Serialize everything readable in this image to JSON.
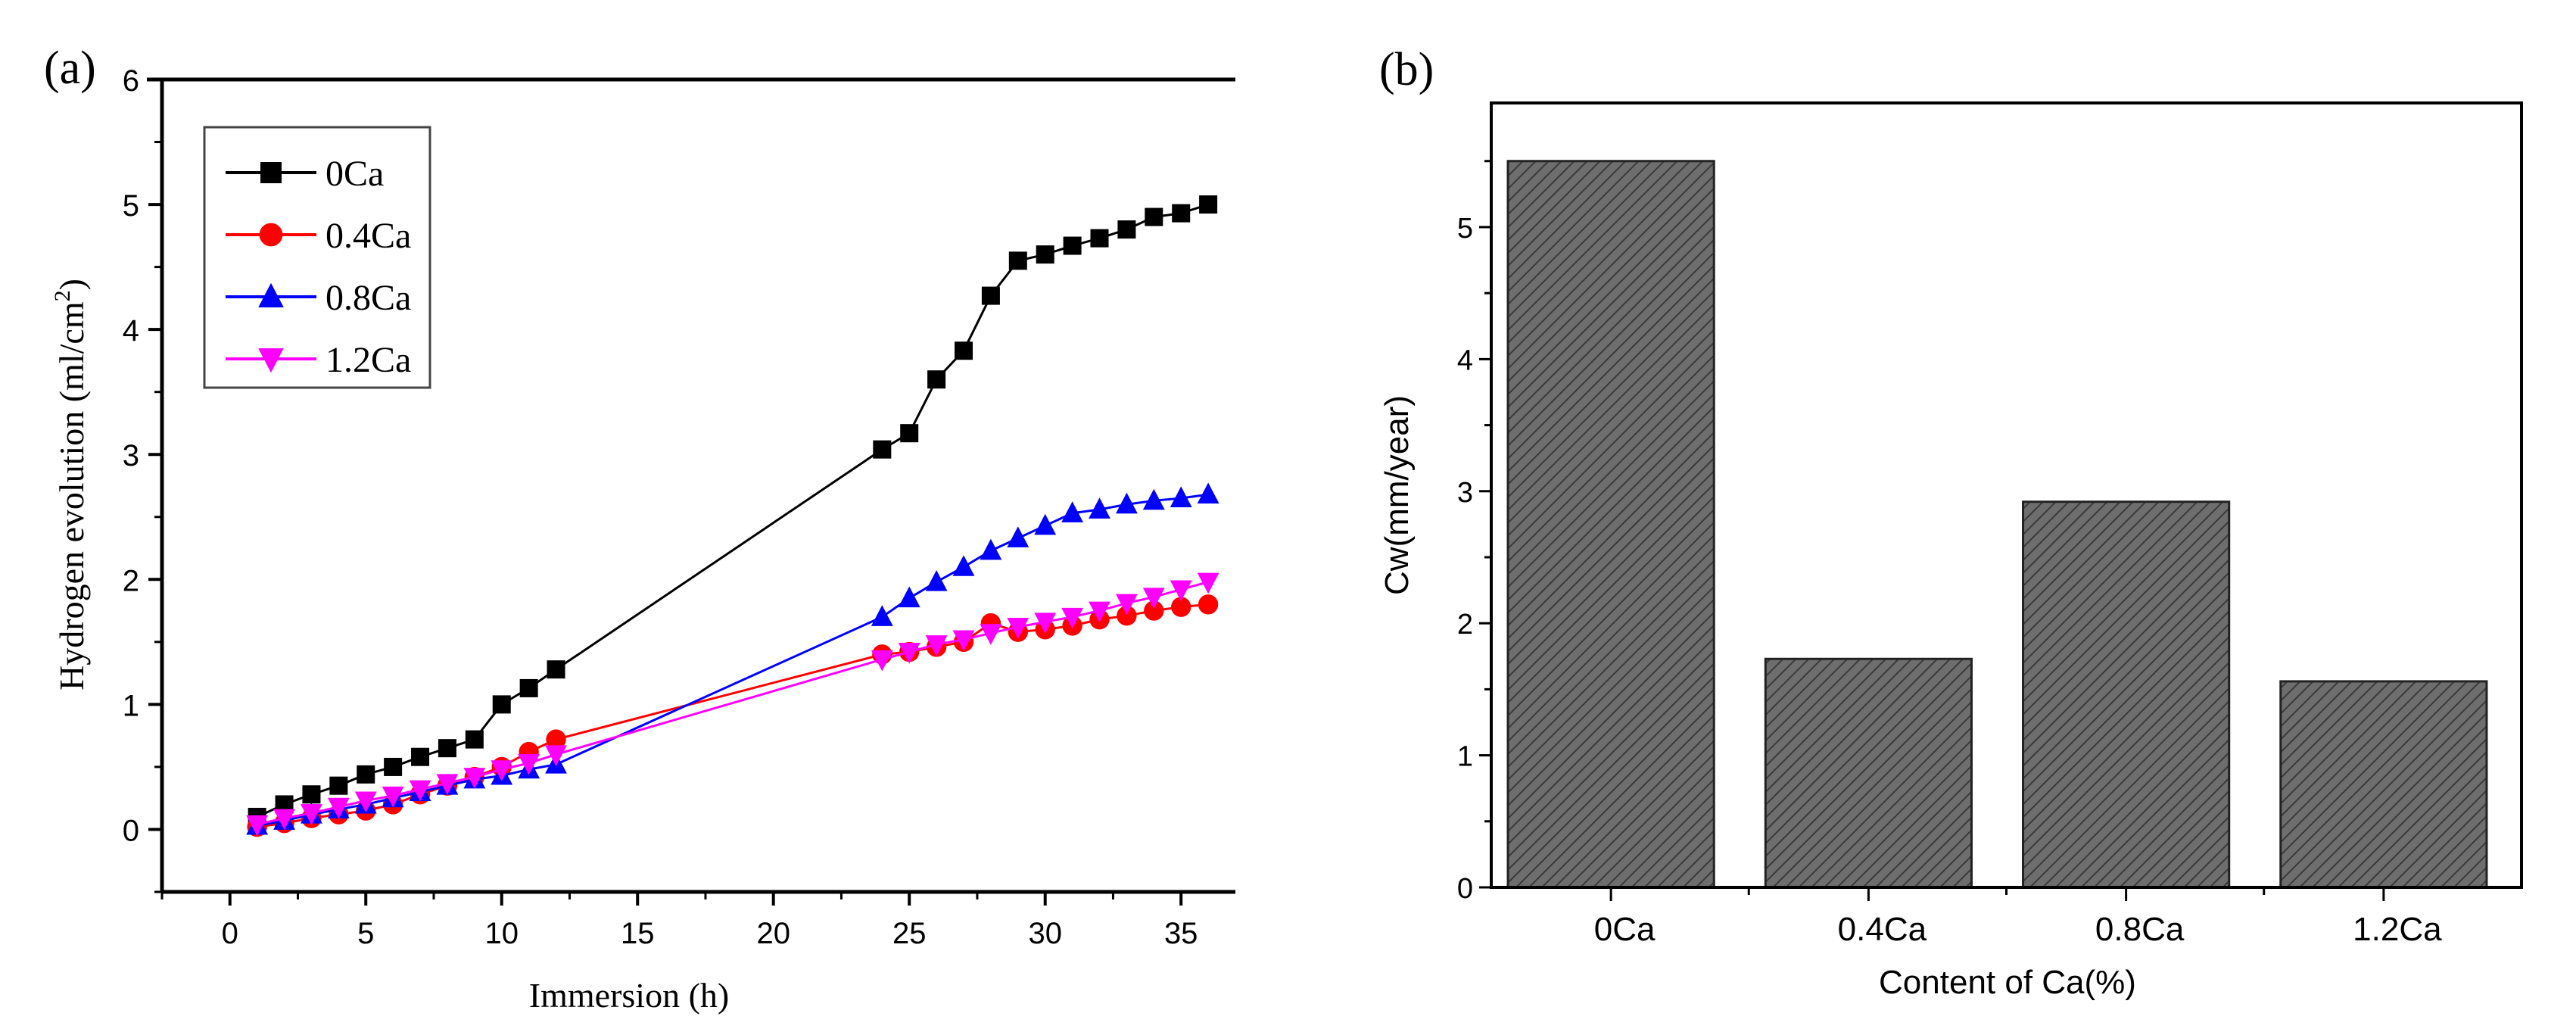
{
  "chart_data": [
    {
      "type": "line",
      "panel_label": "(a)",
      "title": "",
      "xlabel": "Immersion (h)",
      "ylabel": "Hydrogen evolution (ml/cm",
      "ylabel_sup": "2",
      "ylabel_close": ")",
      "xlim": [
        -2.5,
        37
      ],
      "ylim": [
        -0.5,
        6
      ],
      "xticks": [
        0,
        5,
        10,
        15,
        20,
        25,
        30,
        35
      ],
      "yticks": [
        0,
        1,
        2,
        3,
        4,
        5,
        6
      ],
      "legend_position": "top-left",
      "x": [
        1,
        2,
        3,
        4,
        5,
        6,
        7,
        8,
        9,
        10,
        11,
        12,
        24,
        25,
        26,
        27,
        28,
        29,
        30,
        31,
        32,
        33,
        34,
        35,
        36
      ],
      "series": [
        {
          "name": "0Ca",
          "color": "#000000",
          "marker": "square",
          "values": [
            0.1,
            0.2,
            0.28,
            0.35,
            0.44,
            0.5,
            0.58,
            0.65,
            0.72,
            1.0,
            1.13,
            1.28,
            3.04,
            3.17,
            3.6,
            3.83,
            4.27,
            4.55,
            4.6,
            4.67,
            4.73,
            4.8,
            4.9,
            4.93,
            5.0
          ]
        },
        {
          "name": "0.4Ca",
          "color": "#ff0000",
          "marker": "circle",
          "values": [
            0.02,
            0.05,
            0.09,
            0.12,
            0.15,
            0.2,
            0.28,
            0.35,
            0.42,
            0.5,
            0.62,
            0.72,
            1.4,
            1.42,
            1.46,
            1.5,
            1.65,
            1.58,
            1.6,
            1.63,
            1.68,
            1.71,
            1.75,
            1.78,
            1.8
          ]
        },
        {
          "name": "0.8Ca",
          "color": "#0000ff",
          "marker": "triangle-up",
          "values": [
            0.03,
            0.07,
            0.12,
            0.16,
            0.2,
            0.25,
            0.3,
            0.35,
            0.4,
            0.43,
            0.48,
            0.52,
            1.7,
            1.85,
            1.98,
            2.1,
            2.23,
            2.33,
            2.43,
            2.53,
            2.56,
            2.6,
            2.63,
            2.65,
            2.68
          ]
        },
        {
          "name": "1.2Ca",
          "color": "#ff00ff",
          "marker": "triangle-down",
          "values": [
            0.04,
            0.09,
            0.13,
            0.18,
            0.23,
            0.27,
            0.32,
            0.37,
            0.42,
            0.48,
            0.53,
            0.6,
            1.36,
            1.42,
            1.48,
            1.52,
            1.57,
            1.62,
            1.66,
            1.7,
            1.75,
            1.81,
            1.86,
            1.92,
            1.98
          ]
        }
      ]
    },
    {
      "type": "bar",
      "panel_label": "(b)",
      "title": "",
      "xlabel": "Content of Ca(%)",
      "ylabel": "Cw(mm/year)",
      "categories": [
        "0Ca",
        "0.4Ca",
        "0.8Ca",
        "1.2Ca"
      ],
      "values": [
        5.5,
        1.73,
        2.92,
        1.56
      ],
      "ylim": [
        0,
        5.94
      ],
      "yticks": [
        0,
        1,
        2,
        3,
        4,
        5
      ],
      "bar_color": "#6e6e6e",
      "bar_pattern": "diagonal-hatch"
    }
  ]
}
